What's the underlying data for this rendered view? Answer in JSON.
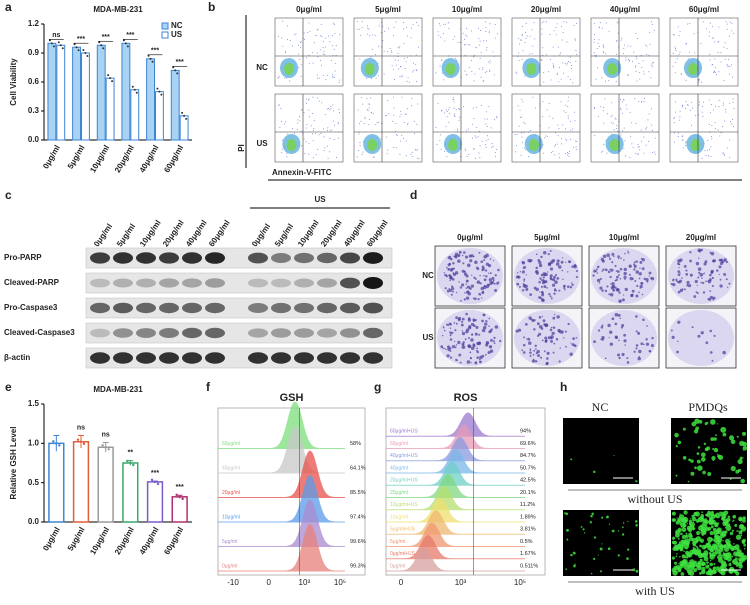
{
  "chart_data": [
    {
      "type": "bar",
      "panel_label": "a",
      "title": "MDA-MB-231",
      "y_label": "Cell Viability",
      "categories": [
        "0μg/ml",
        "5μg/ml",
        "10μg/ml",
        "20μg/ml",
        "40μg/ml",
        "60μg/ml"
      ],
      "series": [
        {
          "name": "NC",
          "color": "#a9d3f2",
          "values": [
            1.0,
            0.96,
            0.98,
            1.0,
            0.84,
            0.72
          ]
        },
        {
          "name": "US",
          "color": "#ffffff",
          "values": [
            0.98,
            0.9,
            0.64,
            0.52,
            0.5,
            0.25
          ]
        }
      ],
      "edge_color": "#3d85d6",
      "ylim": [
        0,
        1.2
      ],
      "yticks": [
        {
          "value": 0,
          "label": "0.0"
        },
        0.3,
        0.6,
        0.9,
        1.2
      ],
      "annotations": [
        "ns",
        "***",
        "***",
        "***",
        "***",
        "***"
      ],
      "legend": "upper right"
    },
    {
      "type": "bar",
      "panel_label": "e",
      "title": "MDA-MB-231",
      "y_label": "Relative GSH Level",
      "categories": [
        "0μg/ml",
        "5μg/ml",
        "10μg/ml",
        "20μg/ml",
        "40μg/ml",
        "60μg/ml"
      ],
      "values": [
        1.0,
        1.02,
        0.95,
        0.75,
        0.51,
        0.32
      ],
      "errors": [
        0.1,
        0.08,
        0.06,
        0.03,
        0.01,
        0.02
      ],
      "colors": [
        "#3d85d6",
        "#e0603a",
        "#9a9a9a",
        "#3aa86b",
        "#7a5cc8",
        "#b0306e"
      ],
      "ylim": [
        0,
        1.5
      ],
      "yticks": [
        {
          "value": 0,
          "label": "0.0"
        },
        0.5,
        {
          "value": 1,
          "label": "1.0"
        },
        1.5
      ],
      "annotations": [
        null,
        "ns",
        "ns",
        "**",
        "***",
        "***"
      ]
    }
  ],
  "flow_cytometry": {
    "panel_label": "b",
    "columns": [
      "0μg/ml",
      "5μg/ml",
      "10μg/ml",
      "20μg/ml",
      "40μg/ml",
      "60μg/ml"
    ],
    "rows": [
      "NC",
      "US"
    ],
    "y_label": "PI",
    "x_label": "Annexin-V-FITC"
  },
  "western_blot": {
    "panel_label": "c",
    "group_label": "US",
    "lanes": [
      "0μg/ml",
      "5μg/ml",
      "10μg/ml",
      "20μg/ml",
      "40μg/ml",
      "60μg/ml",
      "0μg/ml",
      "5μg/ml",
      "10μg/ml",
      "20μg/ml",
      "40μg/ml",
      "60μg/ml"
    ],
    "rows": [
      "Pro-PARP",
      "Cleaved-PARP",
      "Pro-Caspase3",
      "Cleaved-Caspase3",
      "β-actin"
    ]
  },
  "colony_assay": {
    "panel_label": "d",
    "columns": [
      "0μg/ml",
      "5μg/ml",
      "10μg/ml",
      "20μg/ml"
    ],
    "rows": [
      "NC",
      "US"
    ]
  },
  "gsh_histogram": {
    "panel_label": "f",
    "title": "GSH",
    "x_tick_labels": [
      "-10",
      "0",
      "10³",
      "10⁵"
    ],
    "tracks": [
      {
        "label": "60μg/ml",
        "percent": "58%",
        "color": "#7be07b"
      },
      {
        "label": "40μg/ml",
        "percent": "64.1%",
        "color": "#c8c8c8"
      },
      {
        "label": "20μg/ml",
        "percent": "85.5%",
        "color": "#e8504a"
      },
      {
        "label": "10μg/ml",
        "percent": "97.4%",
        "color": "#5b9bea"
      },
      {
        "label": "5μg/ml",
        "percent": "99.6%",
        "color": "#a98bd0"
      },
      {
        "label": "0μg/ml",
        "percent": "99.3%",
        "color": "#e8807a"
      }
    ]
  },
  "ros_histogram": {
    "panel_label": "g",
    "title": "ROS",
    "x_tick_labels": [
      "0",
      "10³",
      "10⁵"
    ],
    "tracks": [
      {
        "label": "60μg/ml+US",
        "percent": "94%",
        "color": "#9a7ad0"
      },
      {
        "label": "60μg/ml",
        "percent": "69.6%",
        "color": "#e89ab8"
      },
      {
        "label": "40μg/ml+US",
        "percent": "84.7%",
        "color": "#8a9ae0"
      },
      {
        "label": "40μg/ml",
        "percent": "50.7%",
        "color": "#7ab8e8"
      },
      {
        "label": "20μg/ml+US",
        "percent": "42.5%",
        "color": "#70d0c8"
      },
      {
        "label": "20μg/ml",
        "percent": "20.1%",
        "color": "#80d880"
      },
      {
        "label": "10μg/ml+US",
        "percent": "11.2%",
        "color": "#b8e070"
      },
      {
        "label": "10μg/ml",
        "percent": "1.89%",
        "color": "#f0e070"
      },
      {
        "label": "5μg/ml+US",
        "percent": "3.81%",
        "color": "#f0b870"
      },
      {
        "label": "5μg/ml",
        "percent": "0.5%",
        "color": "#f09870"
      },
      {
        "label": "0μg/ml+US",
        "percent": "1.67%",
        "color": "#e87a6a"
      },
      {
        "label": "0μg/ml",
        "percent": "0.511%",
        "color": "#d8a0a0"
      }
    ]
  },
  "fluorescence": {
    "panel_label": "h",
    "columns": [
      "NC",
      "PMDQs"
    ],
    "rows": [
      "without US",
      "with US"
    ]
  }
}
